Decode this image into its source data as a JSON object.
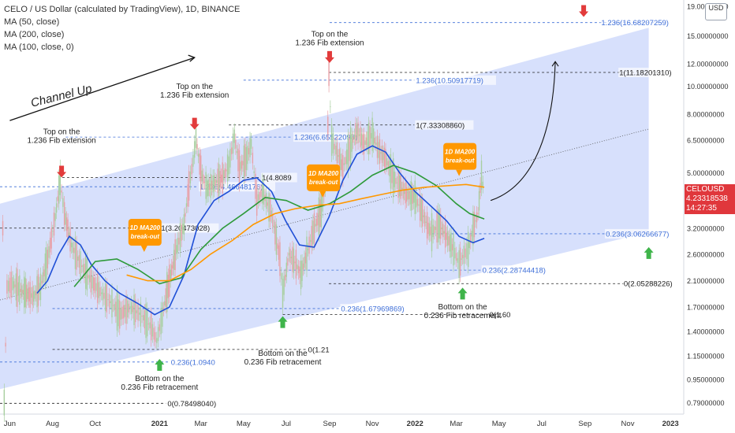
{
  "header": {
    "title": "CELO / US Dollar (calculated by TradingView), 1D, BINANCE",
    "indicators": [
      "MA (50, close)",
      "MA (200, close)",
      "MA (100, close, 0)"
    ],
    "currency_badge": "USD"
  },
  "price_tag": {
    "symbol": "CELOUSD",
    "price": "4.23318538",
    "countdown": "14:27:35",
    "color": "#e0373c"
  },
  "colors": {
    "channel_fill": "#c9d6fb",
    "ma50": "#1f4fd6",
    "ma100": "#ff9800",
    "ma200": "#2e9a3a",
    "candle_up": "#a8cfa0",
    "candle_down": "#e8a0a6",
    "fib_blue": "#3f6fd8",
    "arrow_red": "#e23b3b",
    "arrow_green": "#3fb44a",
    "callout_orange": "#ff9800"
  },
  "chart_data": {
    "type": "line",
    "title": "CELO / US Dollar (calculated by TradingView), 1D, BINANCE",
    "xlabel": "",
    "ylabel": "",
    "y_scale": "log",
    "ylim": [
      0.72,
      20.0
    ],
    "x_range": [
      "2020-05-18",
      "2023-01-20"
    ],
    "x_ticks": [
      {
        "date": "2020-06-01",
        "label": "Jun"
      },
      {
        "date": "2020-08-01",
        "label": "Aug"
      },
      {
        "date": "2020-10-01",
        "label": "Oct"
      },
      {
        "date": "2021-01-01",
        "label": "2021"
      },
      {
        "date": "2021-03-01",
        "label": "Mar"
      },
      {
        "date": "2021-05-01",
        "label": "May"
      },
      {
        "date": "2021-07-01",
        "label": "Jul"
      },
      {
        "date": "2021-09-01",
        "label": "Sep"
      },
      {
        "date": "2021-11-01",
        "label": "Nov"
      },
      {
        "date": "2022-01-01",
        "label": "2022"
      },
      {
        "date": "2022-03-01",
        "label": "Mar"
      },
      {
        "date": "2022-05-01",
        "label": "May"
      },
      {
        "date": "2022-07-01",
        "label": "Jul"
      },
      {
        "date": "2022-09-01",
        "label": "Sep"
      },
      {
        "date": "2022-11-01",
        "label": "Nov"
      },
      {
        "date": "2023-01-01",
        "label": "2023"
      }
    ],
    "y_ticks": [
      {
        "value": 19.0,
        "label": "19.00000000"
      },
      {
        "value": 15.0,
        "label": "15.00000000"
      },
      {
        "value": 12.0,
        "label": "12.00000000"
      },
      {
        "value": 10.0,
        "label": "10.00000000"
      },
      {
        "value": 8.0,
        "label": "8.00000000"
      },
      {
        "value": 6.5,
        "label": "6.50000000"
      },
      {
        "value": 5.0,
        "label": "5.00000000"
      },
      {
        "value": 3.2,
        "label": "3.20000000"
      },
      {
        "value": 2.6,
        "label": "2.60000000"
      },
      {
        "value": 2.1,
        "label": "2.10000000"
      },
      {
        "value": 1.7,
        "label": "1.70000000"
      },
      {
        "value": 1.4,
        "label": "1.40000000"
      },
      {
        "value": 1.15,
        "label": "1.15000000"
      },
      {
        "value": 0.95,
        "label": "0.95000000"
      },
      {
        "value": 0.79,
        "label": "0.79000000"
      }
    ],
    "price": {
      "name": "CELOUSD",
      "points": [
        [
          "2020-05-22",
          3.2
        ],
        [
          "2020-05-24",
          0.79
        ],
        [
          "2020-05-28",
          2.0
        ],
        [
          "2020-06-05",
          2.05
        ],
        [
          "2020-06-15",
          1.95
        ],
        [
          "2020-06-25",
          1.9
        ],
        [
          "2020-07-05",
          1.85
        ],
        [
          "2020-07-15",
          2.0
        ],
        [
          "2020-07-25",
          2.5
        ],
        [
          "2020-08-05",
          3.5
        ],
        [
          "2020-08-12",
          4.7
        ],
        [
          "2020-08-18",
          3.6
        ],
        [
          "2020-08-28",
          2.8
        ],
        [
          "2020-09-10",
          2.4
        ],
        [
          "2020-09-25",
          2.1
        ],
        [
          "2020-10-10",
          1.9
        ],
        [
          "2020-10-25",
          1.75
        ],
        [
          "2020-11-05",
          1.6
        ],
        [
          "2020-11-20",
          1.7
        ],
        [
          "2020-12-05",
          1.6
        ],
        [
          "2020-12-20",
          1.45
        ],
        [
          "2020-12-28",
          1.3
        ],
        [
          "2021-01-05",
          1.6
        ],
        [
          "2021-01-15",
          2.1
        ],
        [
          "2021-01-25",
          2.7
        ],
        [
          "2021-02-05",
          3.3
        ],
        [
          "2021-02-12",
          4.5
        ],
        [
          "2021-02-18",
          5.5
        ],
        [
          "2021-02-22",
          6.6
        ],
        [
          "2021-03-01",
          5.0
        ],
        [
          "2021-03-10",
          4.4
        ],
        [
          "2021-03-20",
          4.6
        ],
        [
          "2021-04-01",
          4.8
        ],
        [
          "2021-04-10",
          5.3
        ],
        [
          "2021-04-18",
          6.7
        ],
        [
          "2021-04-25",
          5.2
        ],
        [
          "2021-05-05",
          5.6
        ],
        [
          "2021-05-12",
          6.3
        ],
        [
          "2021-05-20",
          4.0
        ],
        [
          "2021-05-28",
          4.3
        ],
        [
          "2021-06-10",
          3.6
        ],
        [
          "2021-06-22",
          2.5
        ],
        [
          "2021-06-26",
          1.9
        ],
        [
          "2021-07-05",
          2.6
        ],
        [
          "2021-07-15",
          2.4
        ],
        [
          "2021-07-22",
          2.2
        ],
        [
          "2021-08-01",
          2.7
        ],
        [
          "2021-08-10",
          3.2
        ],
        [
          "2021-08-20",
          3.7
        ],
        [
          "2021-08-28",
          4.8
        ],
        [
          "2021-08-31",
          11.1
        ],
        [
          "2021-09-04",
          6.5
        ],
        [
          "2021-09-10",
          6.0
        ],
        [
          "2021-09-20",
          5.2
        ],
        [
          "2021-10-01",
          6.2
        ],
        [
          "2021-10-10",
          7.0
        ],
        [
          "2021-10-20",
          6.3
        ],
        [
          "2021-11-01",
          6.8
        ],
        [
          "2021-11-10",
          6.0
        ],
        [
          "2021-11-20",
          5.6
        ],
        [
          "2021-12-01",
          4.8
        ],
        [
          "2021-12-10",
          4.5
        ],
        [
          "2021-12-20",
          4.2
        ],
        [
          "2022-01-01",
          4.1
        ],
        [
          "2022-01-10",
          3.7
        ],
        [
          "2022-01-20",
          3.2
        ],
        [
          "2022-01-25",
          3.1
        ],
        [
          "2022-02-05",
          3.3
        ],
        [
          "2022-02-15",
          3.0
        ],
        [
          "2022-02-25",
          2.7
        ],
        [
          "2022-03-05",
          2.4
        ],
        [
          "2022-03-10",
          2.55
        ],
        [
          "2022-03-18",
          2.7
        ],
        [
          "2022-03-25",
          3.2
        ],
        [
          "2022-04-01",
          3.6
        ],
        [
          "2022-04-06",
          4.9
        ],
        [
          "2022-04-10",
          4.23
        ]
      ]
    },
    "series": [
      {
        "name": "MA (50, close)",
        "color": "#1f4fd6",
        "points": [
          [
            "2020-07-10",
            1.9
          ],
          [
            "2020-07-25",
            2.1
          ],
          [
            "2020-08-10",
            2.6
          ],
          [
            "2020-08-25",
            3.0
          ],
          [
            "2020-09-10",
            2.8
          ],
          [
            "2020-09-25",
            2.4
          ],
          [
            "2020-10-15",
            2.1
          ],
          [
            "2020-11-05",
            1.9
          ],
          [
            "2020-12-01",
            1.75
          ],
          [
            "2020-12-25",
            1.6
          ],
          [
            "2021-01-15",
            1.7
          ],
          [
            "2021-02-05",
            2.2
          ],
          [
            "2021-02-25",
            3.3
          ],
          [
            "2021-03-20",
            4.0
          ],
          [
            "2021-04-10",
            4.3
          ],
          [
            "2021-05-01",
            4.7
          ],
          [
            "2021-05-20",
            4.8
          ],
          [
            "2021-06-10",
            4.3
          ],
          [
            "2021-06-30",
            3.4
          ],
          [
            "2021-07-20",
            2.8
          ],
          [
            "2021-08-10",
            2.75
          ],
          [
            "2021-08-31",
            3.5
          ],
          [
            "2021-09-20",
            4.7
          ],
          [
            "2021-10-10",
            5.8
          ],
          [
            "2021-11-01",
            6.2
          ],
          [
            "2021-11-20",
            5.9
          ],
          [
            "2021-12-10",
            5.0
          ],
          [
            "2022-01-01",
            4.3
          ],
          [
            "2022-01-25",
            3.8
          ],
          [
            "2022-02-15",
            3.4
          ],
          [
            "2022-03-05",
            3.0
          ],
          [
            "2022-03-25",
            2.85
          ],
          [
            "2022-04-10",
            2.95
          ]
        ]
      },
      {
        "name": "MA (200, close)",
        "color": "#2e9a3a",
        "points": [
          [
            "2020-09-01",
            2.0
          ],
          [
            "2020-10-01",
            2.45
          ],
          [
            "2020-11-01",
            2.5
          ],
          [
            "2020-12-01",
            2.3
          ],
          [
            "2021-01-01",
            2.05
          ],
          [
            "2021-02-01",
            2.15
          ],
          [
            "2021-03-01",
            2.7
          ],
          [
            "2021-04-01",
            3.2
          ],
          [
            "2021-05-01",
            3.6
          ],
          [
            "2021-06-01",
            4.1
          ],
          [
            "2021-07-01",
            4.0
          ],
          [
            "2021-08-01",
            3.7
          ],
          [
            "2021-09-01",
            3.9
          ],
          [
            "2021-10-01",
            4.3
          ],
          [
            "2021-11-01",
            4.9
          ],
          [
            "2021-12-01",
            5.3
          ],
          [
            "2022-01-01",
            5.0
          ],
          [
            "2022-02-01",
            4.5
          ],
          [
            "2022-03-01",
            3.9
          ],
          [
            "2022-03-20",
            3.6
          ],
          [
            "2022-04-10",
            3.45
          ]
        ]
      },
      {
        "name": "MA (100, close, 0)",
        "color": "#ff9800",
        "points": [
          [
            "2020-11-15",
            2.2
          ],
          [
            "2020-12-15",
            2.1
          ],
          [
            "2021-01-15",
            2.1
          ],
          [
            "2021-02-15",
            2.3
          ],
          [
            "2021-03-15",
            2.6
          ],
          [
            "2021-04-15",
            2.9
          ],
          [
            "2021-05-15",
            3.3
          ],
          [
            "2021-06-15",
            3.6
          ],
          [
            "2021-07-15",
            3.75
          ],
          [
            "2021-08-15",
            3.85
          ],
          [
            "2021-09-15",
            3.9
          ],
          [
            "2021-10-15",
            4.05
          ],
          [
            "2021-11-15",
            4.2
          ],
          [
            "2021-12-15",
            4.35
          ],
          [
            "2022-01-15",
            4.45
          ],
          [
            "2022-02-15",
            4.5
          ],
          [
            "2022-03-15",
            4.55
          ],
          [
            "2022-04-10",
            4.45
          ]
        ]
      }
    ],
    "channel": {
      "upper": [
        [
          "2020-05-18",
          3.9
        ],
        [
          "2022-12-01",
          16.0
        ]
      ],
      "lower": [
        [
          "2020-05-18",
          0.88
        ],
        [
          "2022-12-01",
          3.1
        ]
      ]
    },
    "trend_line": [
      [
        "2020-05-18",
        1.8
      ],
      [
        "2022-12-01",
        7.1
      ]
    ],
    "fib_levels": [
      {
        "label": "1.236(16.68207259)",
        "value": 16.68207259,
        "from": "2021-09-01",
        "to": "2022-12-20",
        "color": "#3f6fd8",
        "style": "dashed"
      },
      {
        "label": "1.236(10.50917719)",
        "value": 10.50917719,
        "from": "2021-05-01",
        "to": "2021-12-31",
        "color": "#3f6fd8",
        "style": "dashed"
      },
      {
        "label": "1(11.18201310)",
        "value": 11.1820131,
        "from": "2021-08-31",
        "to": "2022-12-20",
        "color": "#222222",
        "style": "dashed"
      },
      {
        "label": "1(7.33308860)",
        "value": 7.3330886,
        "from": "2021-04-10",
        "to": "2021-12-31",
        "color": "#222222",
        "style": "dashed"
      },
      {
        "label": "1.236(6.65522098)",
        "value": 6.65522098,
        "from": "2020-08-20",
        "to": "2021-07-10",
        "color": "#3f6fd8",
        "style": "dashed"
      },
      {
        "label": "1(4.8089",
        "value": 4.8089,
        "from": "2020-08-15",
        "to": "2021-05-25",
        "color": "#222222",
        "style": "dashed"
      },
      {
        "label": "1.236(4.46648176)",
        "value": 4.46648176,
        "from": "2020-05-18",
        "to": "2021-02-25",
        "color": "#3f6fd8",
        "style": "dashed"
      },
      {
        "label": "1(3.20473028)",
        "value": 3.20473028,
        "from": "2020-05-18",
        "to": "2021-01-01",
        "color": "#222222",
        "style": "dashed"
      },
      {
        "label": "0.236(3.06266677)",
        "value": 3.06266677,
        "from": "2022-01-25",
        "to": "2022-12-20",
        "color": "#3f6fd8",
        "style": "dashed"
      },
      {
        "label": "0.236(2.28744418)",
        "value": 2.28744418,
        "from": "2021-06-01",
        "to": "2022-04-05",
        "color": "#3f6fd8",
        "style": "dashed"
      },
      {
        "label": "0(2.05288226)",
        "value": 2.05288226,
        "from": "2021-08-31",
        "to": "2022-12-20",
        "color": "#222222",
        "style": "dashed"
      },
      {
        "label": "0.236(1.67969869)",
        "value": 1.67969869,
        "from": "2020-08-01",
        "to": "2021-09-15",
        "color": "#3f6fd8",
        "style": "dashed"
      },
      {
        "label": "0(1.60",
        "value": 1.6,
        "from": "2021-06-26",
        "to": "2022-04-15",
        "color": "#222222",
        "style": "dashed"
      },
      {
        "label": "0(1.21",
        "value": 1.21,
        "from": "2020-08-01",
        "to": "2021-07-30",
        "color": "#222222",
        "style": "dashed"
      },
      {
        "label": "0.236(1.0940",
        "value": 1.094,
        "from": "2020-05-18",
        "to": "2021-01-15",
        "color": "#3f6fd8",
        "style": "dashed"
      },
      {
        "label": "0(0.78498040)",
        "value": 0.7849804,
        "from": "2020-05-18",
        "to": "2021-01-10",
        "color": "#222222",
        "style": "dashed"
      }
    ],
    "annotations": [
      {
        "text": "Channel Up",
        "date": "2020-08-15",
        "value": 9.0,
        "rotate": -14,
        "size": 14,
        "italic": true
      },
      {
        "text": "Top on the\n1.236 Fib extension",
        "date": "2020-08-14",
        "value": 6.8,
        "size": 9
      },
      {
        "text": "Top on the\n1.236 Fib extension",
        "date": "2021-02-20",
        "value": 9.8,
        "size": 9
      },
      {
        "text": "Top on the\n1.236 Fib extension",
        "date": "2021-09-01",
        "value": 14.9,
        "size": 9
      },
      {
        "text": "Bottom on the\n0.236 Fib retracement",
        "date": "2021-01-01",
        "value": 0.94,
        "size": 9
      },
      {
        "text": "Bottom on the\n0.236 Fib retracement",
        "date": "2021-06-26",
        "value": 1.15,
        "size": 9
      },
      {
        "text": "Bottom on the\n0.236 Fib retracement",
        "date": "2022-03-10",
        "value": 1.67,
        "size": 9
      }
    ],
    "callouts": [
      {
        "text": "1D MA200\nbreak-out",
        "date": "2020-12-10",
        "value": 3.1
      },
      {
        "text": "1D MA200\nbreak-out",
        "date": "2021-08-22",
        "value": 4.8
      },
      {
        "text": "1D MA200\nbreak-out",
        "date": "2022-03-05",
        "value": 5.7
      }
    ],
    "arrows": [
      {
        "direction": "down",
        "color": "red",
        "date": "2020-08-14",
        "value": 4.9
      },
      {
        "direction": "down",
        "color": "red",
        "date": "2021-02-20",
        "value": 7.2
      },
      {
        "direction": "down",
        "color": "red",
        "date": "2021-09-01",
        "value": 12.3
      },
      {
        "direction": "down",
        "color": "red",
        "date": "2022-08-30",
        "value": 17.8
      },
      {
        "direction": "up",
        "color": "green",
        "date": "2021-01-01",
        "value": 1.1
      },
      {
        "direction": "up",
        "color": "green",
        "date": "2021-06-26",
        "value": 1.55
      },
      {
        "direction": "up",
        "color": "green",
        "date": "2022-03-10",
        "value": 1.95
      },
      {
        "direction": "up",
        "color": "green",
        "date": "2022-12-01",
        "value": 2.7
      }
    ]
  }
}
